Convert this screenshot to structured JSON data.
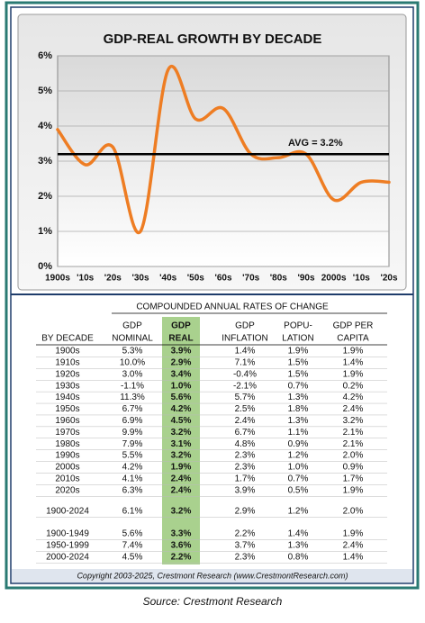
{
  "chart_data": {
    "type": "line",
    "title": "GDP-REAL GROWTH BY DECADE",
    "categories": [
      "1900s",
      "'10s",
      "'20s",
      "'30s",
      "'40s",
      "'50s",
      "'60s",
      "'70s",
      "'80s",
      "'90s",
      "2000s",
      "'10s",
      "'20s"
    ],
    "series": [
      {
        "name": "GDP-Real",
        "color": "#ee7d23",
        "values": [
          3.9,
          2.9,
          3.4,
          1.0,
          5.6,
          4.2,
          4.5,
          3.2,
          3.1,
          3.2,
          1.9,
          2.4,
          2.4
        ]
      }
    ],
    "ylim": [
      0,
      6
    ],
    "yticks": [
      {
        "value": 0,
        "label": "0%"
      },
      {
        "value": 1,
        "label": "1%"
      },
      {
        "value": 2,
        "label": "2%"
      },
      {
        "value": 3,
        "label": "3%"
      },
      {
        "value": 4,
        "label": "4%"
      },
      {
        "value": 5,
        "label": "5%"
      },
      {
        "value": 6,
        "label": "6%"
      }
    ],
    "grid": true,
    "average": {
      "value": 3.2,
      "label": "AVG = 3.2%"
    }
  },
  "table": {
    "group_header": "COMPOUNDED ANNUAL RATES OF CHANGE",
    "headers": [
      [
        "BY DECADE"
      ],
      [
        "GDP",
        "NOMINAL"
      ],
      [
        "GDP",
        "REAL"
      ],
      [
        "GDP",
        "INFLATION"
      ],
      [
        "POPU-",
        "LATION"
      ],
      [
        "GDP PER",
        "CAPITA"
      ]
    ],
    "sections": [
      [
        [
          "1900s",
          "5.3%",
          "3.9%",
          "1.4%",
          "1.9%",
          "1.9%"
        ],
        [
          "1910s",
          "10.0%",
          "2.9%",
          "7.1%",
          "1.5%",
          "1.4%"
        ],
        [
          "1920s",
          "3.0%",
          "3.4%",
          "-0.4%",
          "1.5%",
          "1.9%"
        ],
        [
          "1930s",
          "-1.1%",
          "1.0%",
          "-2.1%",
          "0.7%",
          "0.2%"
        ],
        [
          "1940s",
          "11.3%",
          "5.6%",
          "5.7%",
          "1.3%",
          "4.2%"
        ],
        [
          "1950s",
          "6.7%",
          "4.2%",
          "2.5%",
          "1.8%",
          "2.4%"
        ],
        [
          "1960s",
          "6.9%",
          "4.5%",
          "2.4%",
          "1.3%",
          "3.2%"
        ],
        [
          "1970s",
          "9.9%",
          "3.2%",
          "6.7%",
          "1.1%",
          "2.1%"
        ],
        [
          "1980s",
          "7.9%",
          "3.1%",
          "4.8%",
          "0.9%",
          "2.1%"
        ],
        [
          "1990s",
          "5.5%",
          "3.2%",
          "2.3%",
          "1.2%",
          "2.0%"
        ],
        [
          "2000s",
          "4.2%",
          "1.9%",
          "2.3%",
          "1.0%",
          "0.9%"
        ],
        [
          "2010s",
          "4.1%",
          "2.4%",
          "1.7%",
          "0.7%",
          "1.7%"
        ],
        [
          "2020s",
          "6.3%",
          "2.4%",
          "3.9%",
          "0.5%",
          "1.9%"
        ]
      ],
      [
        [
          "1900-2024",
          "6.1%",
          "3.2%",
          "2.9%",
          "1.2%",
          "2.0%"
        ]
      ],
      [
        [
          "1900-1949",
          "5.6%",
          "3.3%",
          "2.2%",
          "1.4%",
          "1.9%"
        ],
        [
          "1950-1999",
          "7.4%",
          "3.6%",
          "3.7%",
          "1.3%",
          "2.4%"
        ],
        [
          "2000-2024",
          "4.5%",
          "2.2%",
          "2.3%",
          "0.8%",
          "1.4%"
        ]
      ]
    ]
  },
  "copyright": "Copyright 2003-2025, Crestmont Research (www.CrestmontResearch.com)",
  "source": "Source: Crestmont Research"
}
